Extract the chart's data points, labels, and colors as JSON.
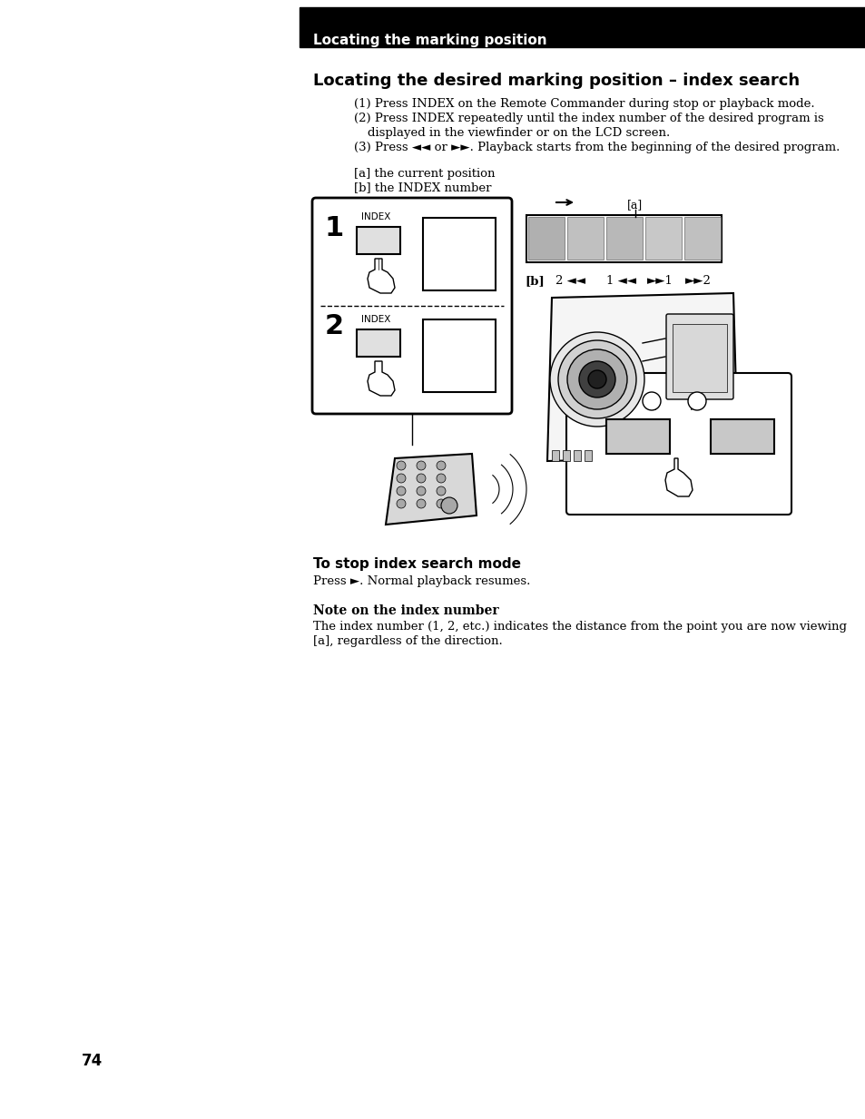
{
  "page_bg": "#ffffff",
  "header_bg": "#000000",
  "header_text": "Locating the marking position",
  "header_text_color": "#ffffff",
  "section_title": "Locating the desired marking position – index search",
  "page_number": "74",
  "stop_title": "To stop index search mode",
  "stop_body": "Press ►. Normal playback resumes.",
  "note_title": "Note on the index number",
  "note_body_1": "The index number (1, 2, etc.) indicates the distance from the point you are now viewing",
  "note_body_2": "[a], regardless of the direction."
}
